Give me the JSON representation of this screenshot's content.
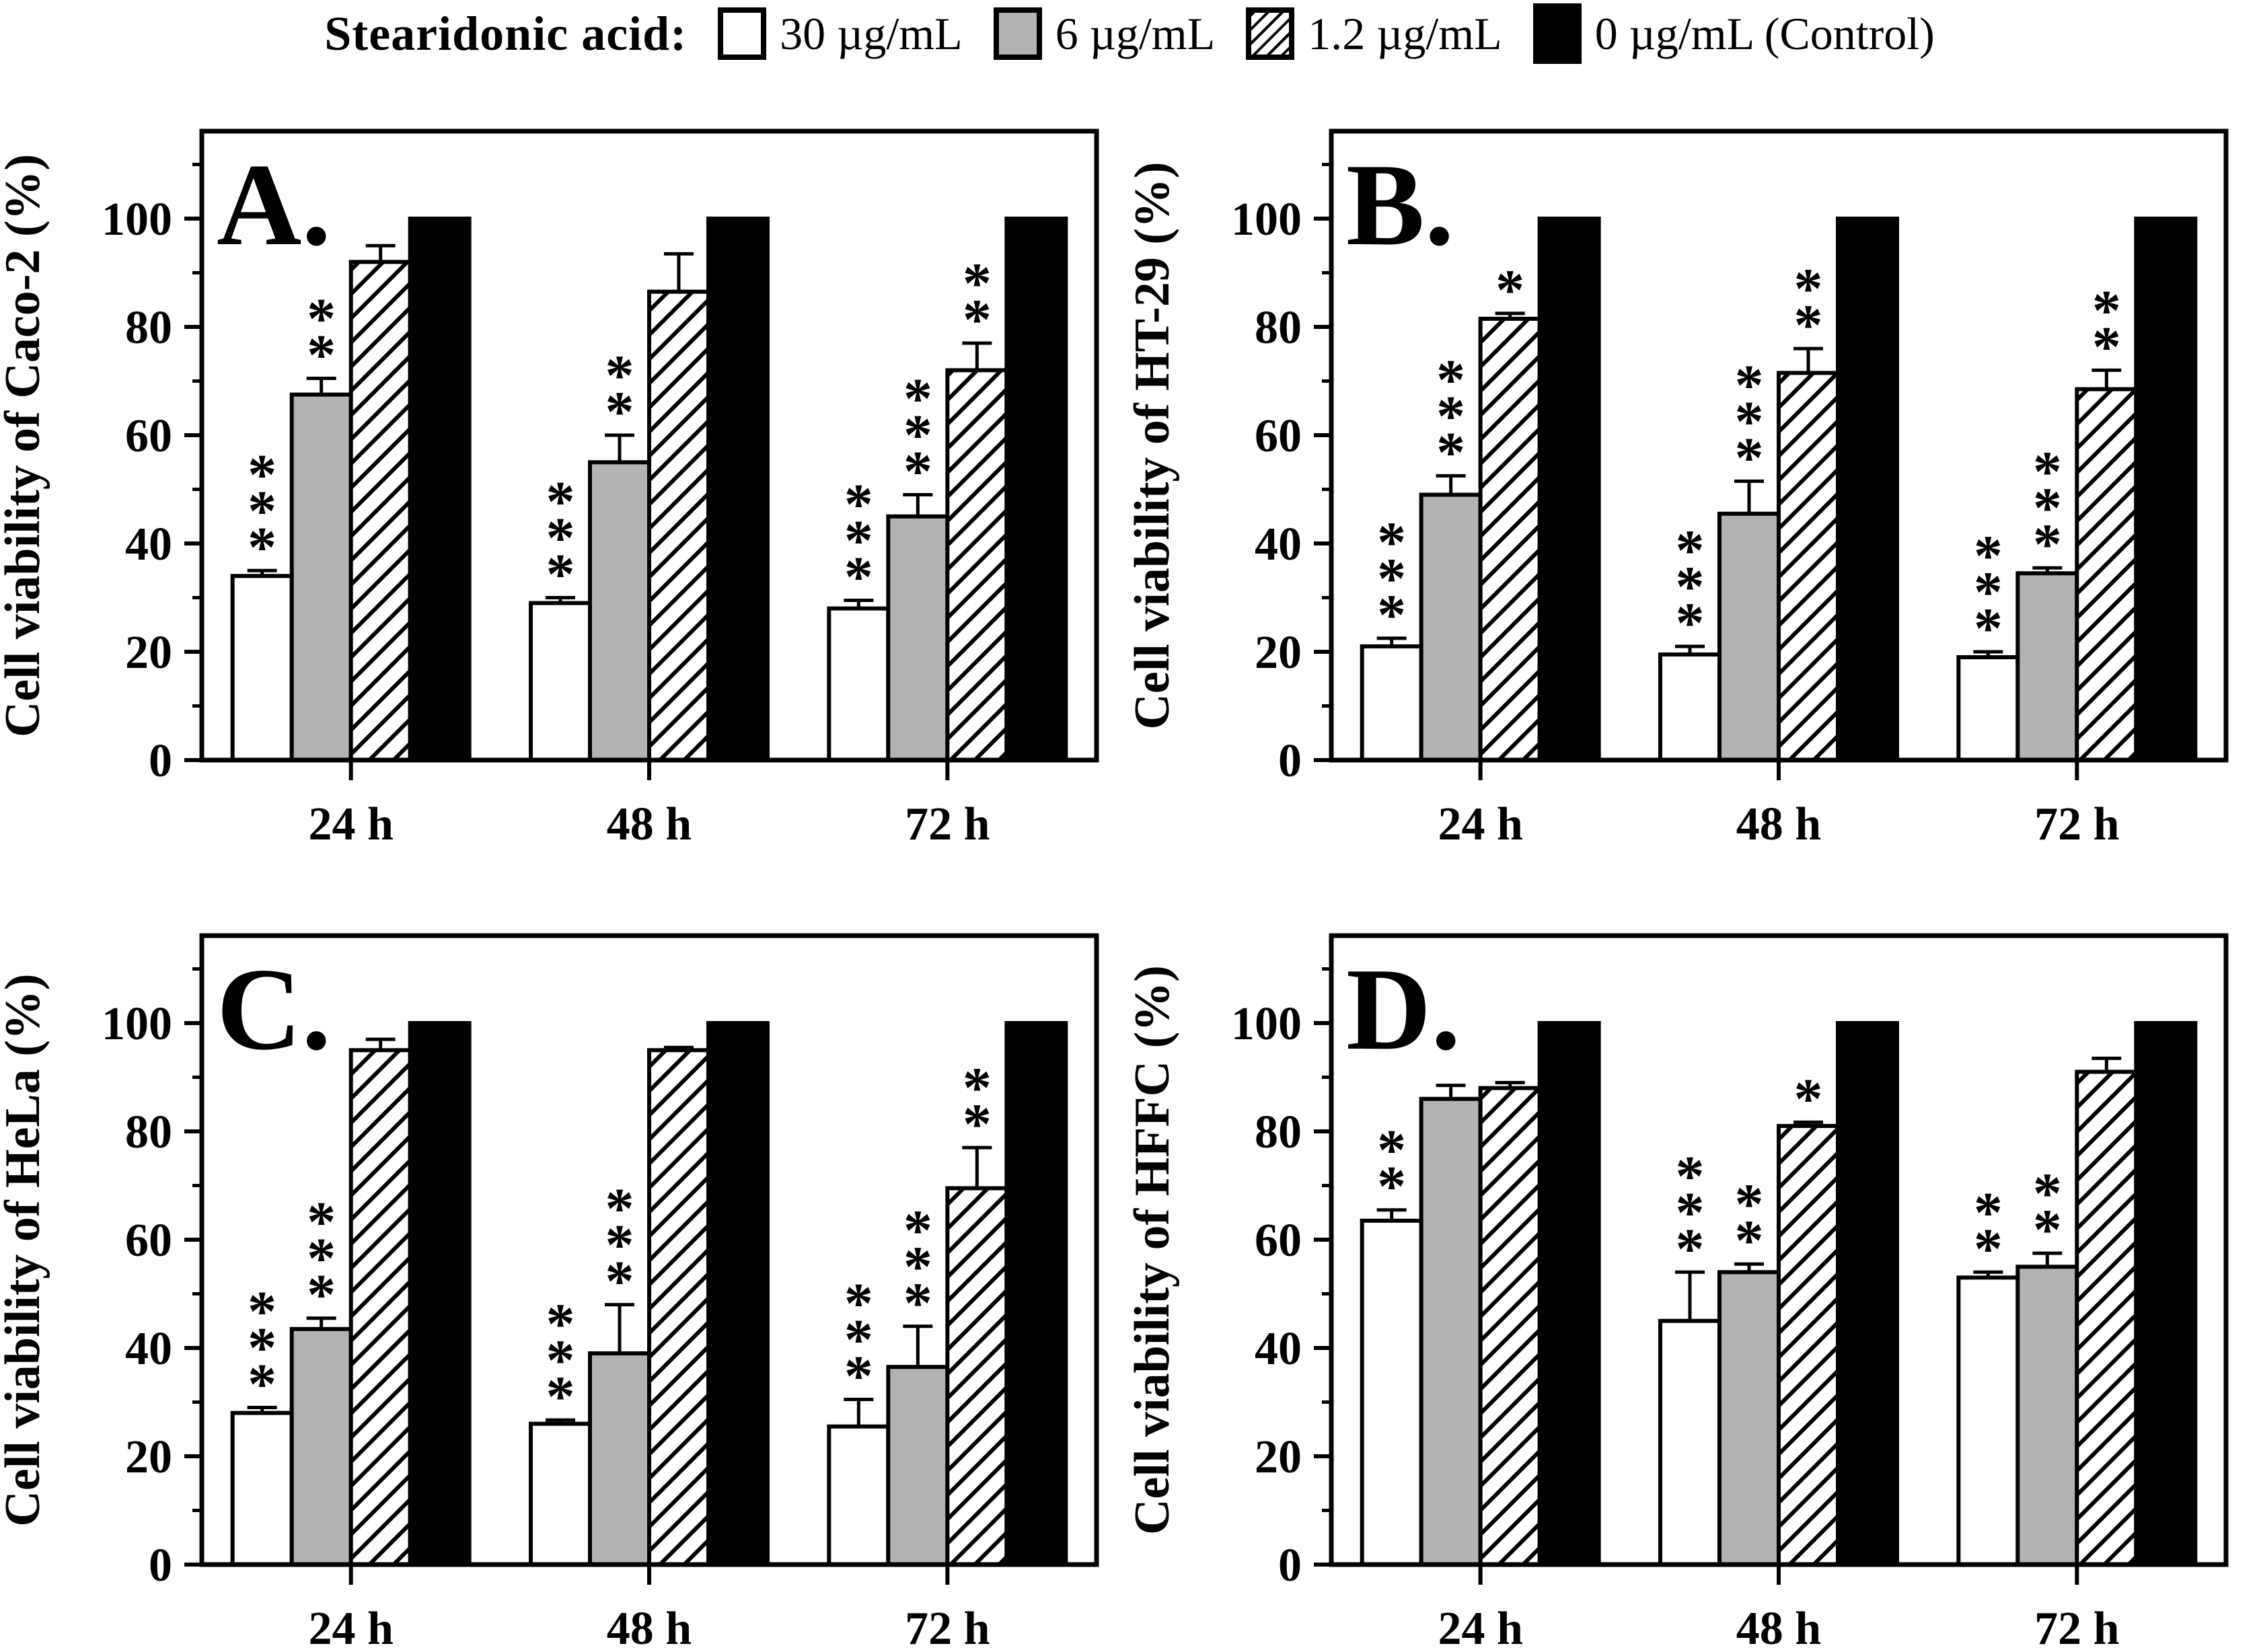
{
  "legend": {
    "title": "Stearidonic acid:",
    "items": [
      {
        "label": "30 µg/mL",
        "swatch": "white"
      },
      {
        "label": "6 µg/mL",
        "swatch": "gray"
      },
      {
        "label": "1.2 µg/mL",
        "swatch": "hatched"
      },
      {
        "label": "0 µg/mL (Control)",
        "swatch": "black"
      }
    ]
  },
  "colors": {
    "white": "#ffffff",
    "gray": "#b3b3b3",
    "black": "#000000",
    "stroke": "#000000"
  },
  "chart_data": [
    {
      "type": "bar",
      "panel_letter": "A.",
      "ylabel": "Cell viability of Caco-2 (%)",
      "categories": [
        "24 h",
        "48 h",
        "72 h"
      ],
      "yticks": [
        0,
        20,
        40,
        60,
        80,
        100
      ],
      "ylim": [
        0,
        116
      ],
      "grid": false,
      "series": [
        {
          "name": "30 µg/mL",
          "style": "white",
          "values": [
            34,
            29,
            28
          ],
          "errors": [
            1,
            1,
            1.5
          ],
          "sig": [
            "***",
            "***",
            "***"
          ]
        },
        {
          "name": "6 µg/mL",
          "style": "gray",
          "values": [
            67.5,
            55,
            45
          ],
          "errors": [
            3,
            5,
            4
          ],
          "sig": [
            "**",
            "**",
            "***"
          ]
        },
        {
          "name": "1.2 µg/mL",
          "style": "hatched",
          "values": [
            92,
            86.5,
            72
          ],
          "errors": [
            3,
            7,
            5
          ],
          "sig": [
            "",
            "",
            "**"
          ]
        },
        {
          "name": "0 µg/mL (Control)",
          "style": "black",
          "values": [
            100,
            100,
            100
          ],
          "errors": [
            0,
            0,
            0
          ],
          "sig": [
            "",
            "",
            ""
          ]
        }
      ]
    },
    {
      "type": "bar",
      "panel_letter": "B.",
      "ylabel": "Cell viability of HT-29 (%)",
      "categories": [
        "24 h",
        "48 h",
        "72 h"
      ],
      "yticks": [
        0,
        20,
        40,
        60,
        80,
        100
      ],
      "ylim": [
        0,
        116
      ],
      "grid": false,
      "series": [
        {
          "name": "30 µg/mL",
          "style": "white",
          "values": [
            21,
            19.5,
            19
          ],
          "errors": [
            1.5,
            1.5,
            1
          ],
          "sig": [
            "***",
            "***",
            "***"
          ]
        },
        {
          "name": "6 µg/mL",
          "style": "gray",
          "values": [
            49,
            45.5,
            34.5
          ],
          "errors": [
            3.5,
            6,
            1
          ],
          "sig": [
            "***",
            "***",
            "***"
          ]
        },
        {
          "name": "1.2 µg/mL",
          "style": "hatched",
          "values": [
            81.5,
            71.5,
            68.5
          ],
          "errors": [
            1,
            4.5,
            3.5
          ],
          "sig": [
            "*",
            "**",
            "**"
          ]
        },
        {
          "name": "0 µg/mL (Control)",
          "style": "black",
          "values": [
            100,
            100,
            100
          ],
          "errors": [
            0,
            0,
            0
          ],
          "sig": [
            "",
            "",
            ""
          ]
        }
      ]
    },
    {
      "type": "bar",
      "panel_letter": "C.",
      "ylabel": "Cell viability of HeLa (%)",
      "categories": [
        "24 h",
        "48 h",
        "72 h"
      ],
      "yticks": [
        0,
        20,
        40,
        60,
        80,
        100
      ],
      "ylim": [
        0,
        116
      ],
      "grid": false,
      "series": [
        {
          "name": "30 µg/mL",
          "style": "white",
          "values": [
            28,
            26,
            25.5
          ],
          "errors": [
            1,
            0.7,
            5
          ],
          "sig": [
            "***",
            "***",
            "***"
          ]
        },
        {
          "name": "6 µg/mL",
          "style": "gray",
          "values": [
            43.5,
            39,
            36.5
          ],
          "errors": [
            2,
            9,
            7.5
          ],
          "sig": [
            "***",
            "***",
            "***"
          ]
        },
        {
          "name": "1.2 µg/mL",
          "style": "hatched",
          "values": [
            95,
            95,
            69.5
          ],
          "errors": [
            2,
            0.5,
            7.5
          ],
          "sig": [
            "",
            "",
            "**"
          ]
        },
        {
          "name": "0 µg/mL (Control)",
          "style": "black",
          "values": [
            100,
            100,
            100
          ],
          "errors": [
            0,
            0,
            0
          ],
          "sig": [
            "",
            "",
            ""
          ]
        }
      ]
    },
    {
      "type": "bar",
      "panel_letter": "D.",
      "ylabel": "Cell viability of HFFC (%)",
      "categories": [
        "24 h",
        "48 h",
        "72 h"
      ],
      "yticks": [
        0,
        20,
        40,
        60,
        80,
        100
      ],
      "ylim": [
        0,
        116
      ],
      "grid": false,
      "series": [
        {
          "name": "30 µg/mL",
          "style": "white",
          "values": [
            63.5,
            45,
            53
          ],
          "errors": [
            2,
            9,
            1
          ],
          "sig": [
            "**",
            "***",
            "**"
          ]
        },
        {
          "name": "6 µg/mL",
          "style": "gray",
          "values": [
            86,
            54,
            55
          ],
          "errors": [
            2.5,
            1.5,
            2.5
          ],
          "sig": [
            "",
            "**",
            "**"
          ]
        },
        {
          "name": "1.2 µg/mL",
          "style": "hatched",
          "values": [
            88,
            81,
            91
          ],
          "errors": [
            1,
            0.7,
            2.5
          ],
          "sig": [
            "",
            "*",
            ""
          ]
        },
        {
          "name": "0 µg/mL (Control)",
          "style": "black",
          "values": [
            100,
            100,
            100
          ],
          "errors": [
            0,
            0,
            0
          ],
          "sig": [
            "",
            "",
            ""
          ]
        }
      ]
    }
  ]
}
